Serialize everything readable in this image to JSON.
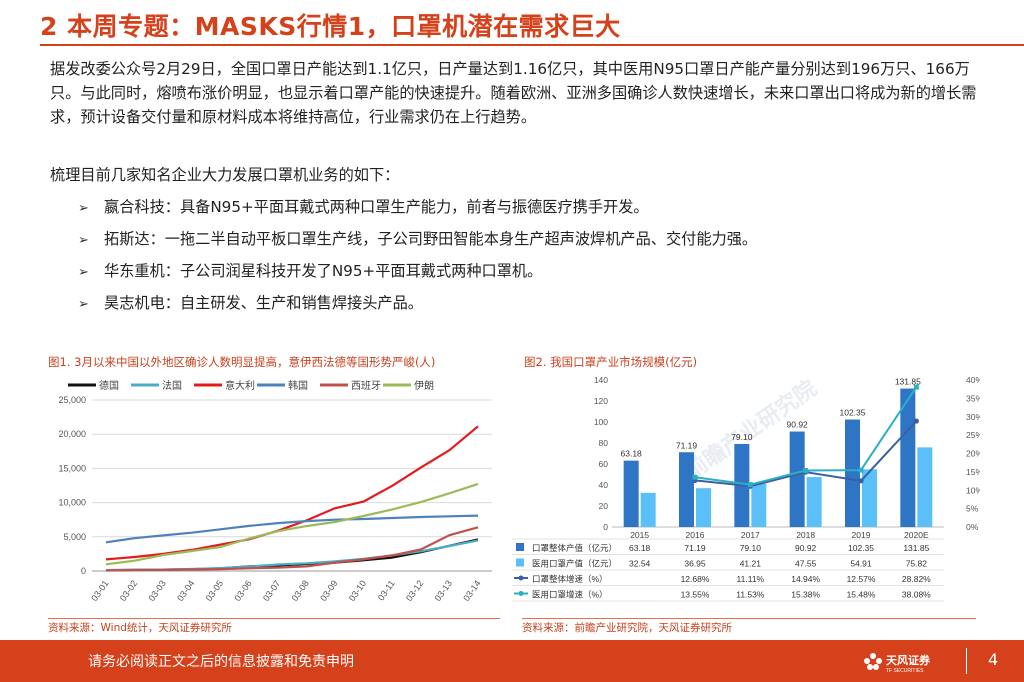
{
  "page": {
    "title": "2 本周专题：MASKS行情1，口罩机潜在需求巨大",
    "paragraph1": "据发改委公众号2月29日，全国口罩日产能达到1.1亿只，日产量达到1.16亿只，其中医用N95口罩日产能产量分别达到196万只、166万只。与此同时，熔喷布涨价明显，也显示着口罩产能的快速提升。随着欧洲、亚洲多国确诊人数快速增长，未来口罩出口将成为新的增长需求，预计设备交付量和原材料成本将维持高位，行业需求仍在上行趋势。",
    "paragraph2": "梳理目前几家知名企业大力发展口罩机业务的如下：",
    "bullets": [
      "嬴合科技：具备N95+平面耳戴式两种口罩生产能力，前者与振德医疗携手开发。",
      "拓斯达：一拖二半自动平板口罩生产线，子公司野田智能本身生产超声波焊机产品、交付能力强。",
      "华东重机：子公司润星科技开发了N95+平面耳戴式两种口罩机。",
      "昊志机电：自主研发、生产和销售焊接头产品。"
    ],
    "bullet_arrow": "➢",
    "footer_text": "请务必阅读正文之后的信息披露和免责申明",
    "footer_logo_text": "天风证券",
    "footer_logo_sub": "TF SECURITIES",
    "page_number": "4",
    "fig1_title": "图1. 3月以来中国以外地区确诊人数明显提高，意伊西法德等国形势严峻(人)",
    "fig1_source": "资料来源：Wind统计，天风证券研究所",
    "fig2_title": "图2. 我国口罩产业市场规模(亿元)",
    "fig2_source": "资料来源：前瞻产业研究院，天风证券研究所",
    "fig2_watermark": "前瞻产业研究院",
    "colors": {
      "accent": "#d4411a",
      "germany": "#111111",
      "france": "#4bacc6",
      "italy": "#e41a1c",
      "korea": "#4f81bd",
      "spain": "#c0504d",
      "iran": "#9bbb59",
      "bar_total": "#2e75c6",
      "bar_medical": "#5bc0f8",
      "line_total": "#3a5fa6",
      "line_medical": "#2ab0c0"
    }
  },
  "chart_data": [
    {
      "type": "line",
      "title": "图1. 3月以来中国以外地区确诊人数明显提高，意伊西法德等国形势严峻(人)",
      "x": [
        "03-01",
        "03-02",
        "03-03",
        "03-04",
        "03-05",
        "03-06",
        "03-07",
        "03-08",
        "03-09",
        "03-10",
        "03-11",
        "03-12",
        "03-13",
        "03-14"
      ],
      "ylim": [
        0,
        25000
      ],
      "yticks": [
        "0",
        "5,000",
        "10,000",
        "15,000",
        "20,000",
        "25,000"
      ],
      "ytick_values": [
        0,
        5000,
        10000,
        15000,
        20000,
        25000
      ],
      "legend_position": "top",
      "series": [
        {
          "name": "德国",
          "color": "#111111",
          "values": [
            130,
            160,
            200,
            260,
            400,
            670,
            800,
            1040,
            1220,
            1560,
            1960,
            2750,
            3680,
            4600
          ]
        },
        {
          "name": "法国",
          "color": "#4bacc6",
          "values": [
            130,
            190,
            210,
            290,
            420,
            650,
            950,
            1130,
            1410,
            1780,
            2280,
            2880,
            3660,
            4470
          ]
        },
        {
          "name": "意大利",
          "color": "#e41a1c",
          "values": [
            1700,
            2040,
            2500,
            3090,
            3860,
            4640,
            5880,
            7380,
            9170,
            10150,
            12460,
            15110,
            17660,
            21160
          ]
        },
        {
          "name": "韩国",
          "color": "#4f81bd",
          "values": [
            4200,
            4800,
            5200,
            5600,
            6100,
            6600,
            7000,
            7300,
            7500,
            7600,
            7750,
            7900,
            8000,
            8100
          ]
        },
        {
          "name": "西班牙",
          "color": "#c0504d",
          "values": [
            80,
            120,
            160,
            220,
            280,
            400,
            500,
            670,
            1230,
            1700,
            2280,
            3150,
            5230,
            6390
          ]
        },
        {
          "name": "伊朗",
          "color": "#9bbb59",
          "values": [
            980,
            1500,
            2340,
            2920,
            3510,
            4750,
            5820,
            6570,
            7160,
            8040,
            9000,
            10070,
            11360,
            12730
          ]
        }
      ]
    },
    {
      "type": "bar",
      "title": "图2. 我国口罩产业市场规模(亿元)",
      "categories": [
        "2015",
        "2016",
        "2017",
        "2018",
        "2019",
        "2020E"
      ],
      "ylim": [
        0,
        140
      ],
      "yticks": [
        "0",
        "20",
        "40",
        "60",
        "80",
        "100",
        "120",
        "140"
      ],
      "ytick_values": [
        0,
        20,
        40,
        60,
        80,
        100,
        120,
        140
      ],
      "y2lim": [
        0,
        40
      ],
      "y2ticks": [
        "0%",
        "5%",
        "10%",
        "15%",
        "20%",
        "25%",
        "30%",
        "35%",
        "40%"
      ],
      "y2tick_values": [
        0,
        5,
        10,
        15,
        20,
        25,
        30,
        35,
        40
      ],
      "series": [
        {
          "name": "口罩整体产值（亿元）",
          "kind": "bar",
          "color": "#2e75c6",
          "values": [
            63.18,
            71.19,
            79.1,
            90.92,
            102.35,
            131.85
          ],
          "labels": [
            "63.18",
            "71.19",
            "79.10",
            "90.92",
            "102.35",
            "131.85"
          ]
        },
        {
          "name": "医用口罩产值（亿元）",
          "kind": "bar",
          "color": "#5bc0f8",
          "values": [
            32.54,
            36.95,
            41.21,
            47.55,
            54.91,
            75.82
          ],
          "labels": [
            "32.54",
            "36.95",
            "41.21",
            "47.55",
            "54.91",
            "75.82"
          ]
        },
        {
          "name": "口罩整体增速（%）",
          "kind": "line",
          "color": "#3a5fa6",
          "values": [
            null,
            12.68,
            11.11,
            14.94,
            12.57,
            28.82
          ],
          "labels": [
            "",
            "12.68%",
            "11.11%",
            "14.94%",
            "12.57%",
            "28.82%"
          ]
        },
        {
          "name": "医用口罩增速（%）",
          "kind": "line",
          "color": "#2ab0c0",
          "values": [
            null,
            13.55,
            11.53,
            15.38,
            15.48,
            38.08
          ],
          "labels": [
            "",
            "13.55%",
            "11.53%",
            "15.38%",
            "15.48%",
            "38.08%"
          ]
        }
      ]
    }
  ]
}
